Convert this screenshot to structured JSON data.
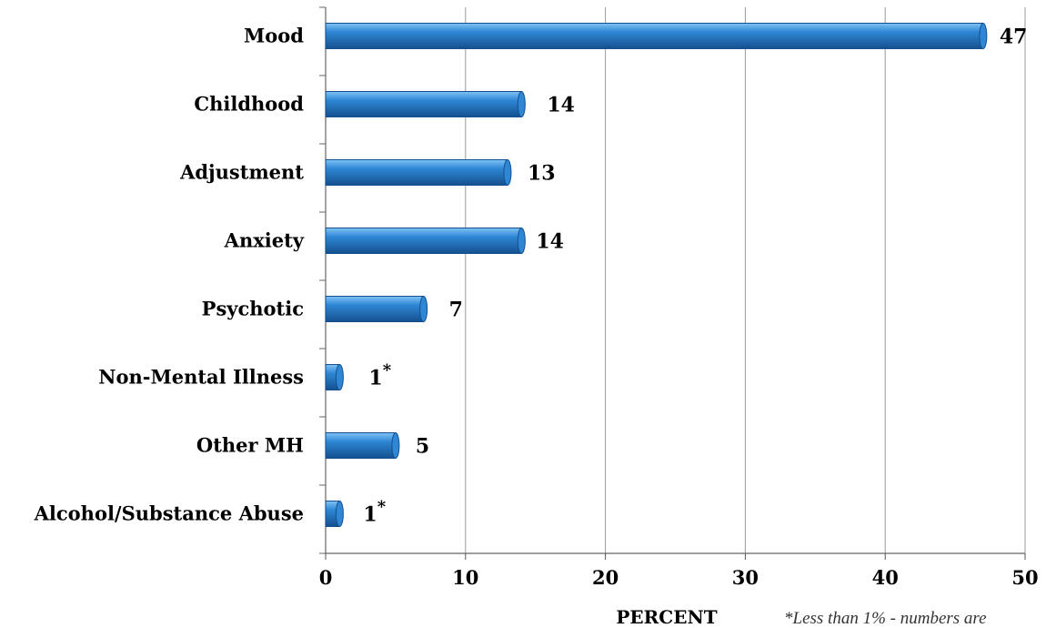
{
  "chart_data": {
    "type": "bar",
    "orientation": "horizontal",
    "categories": [
      "Mood",
      "Childhood",
      "Adjustment",
      "Anxiety",
      "Psychotic",
      "Non-Mental Illness",
      "Other MH",
      "Alcohol/Substance Abuse"
    ],
    "values": [
      47,
      14,
      13,
      14,
      7,
      1,
      5,
      1
    ],
    "value_labels": [
      "47",
      "14",
      "13",
      "14",
      "7",
      "1",
      "5",
      "1"
    ],
    "value_marks": [
      "",
      "",
      "",
      "",
      "",
      "*",
      "",
      "*"
    ],
    "xlabel": "PERCENT",
    "xlim": [
      0,
      50
    ],
    "xticks": [
      "0",
      "10",
      "20",
      "30",
      "40",
      "50"
    ],
    "grid": "vertical",
    "footnote": "*Less than 1% - numbers are",
    "colors": {
      "bar": "#2e86d4",
      "bar_light": "#7fc3f5",
      "bar_dark": "#14508f",
      "grid": "#999999"
    }
  }
}
